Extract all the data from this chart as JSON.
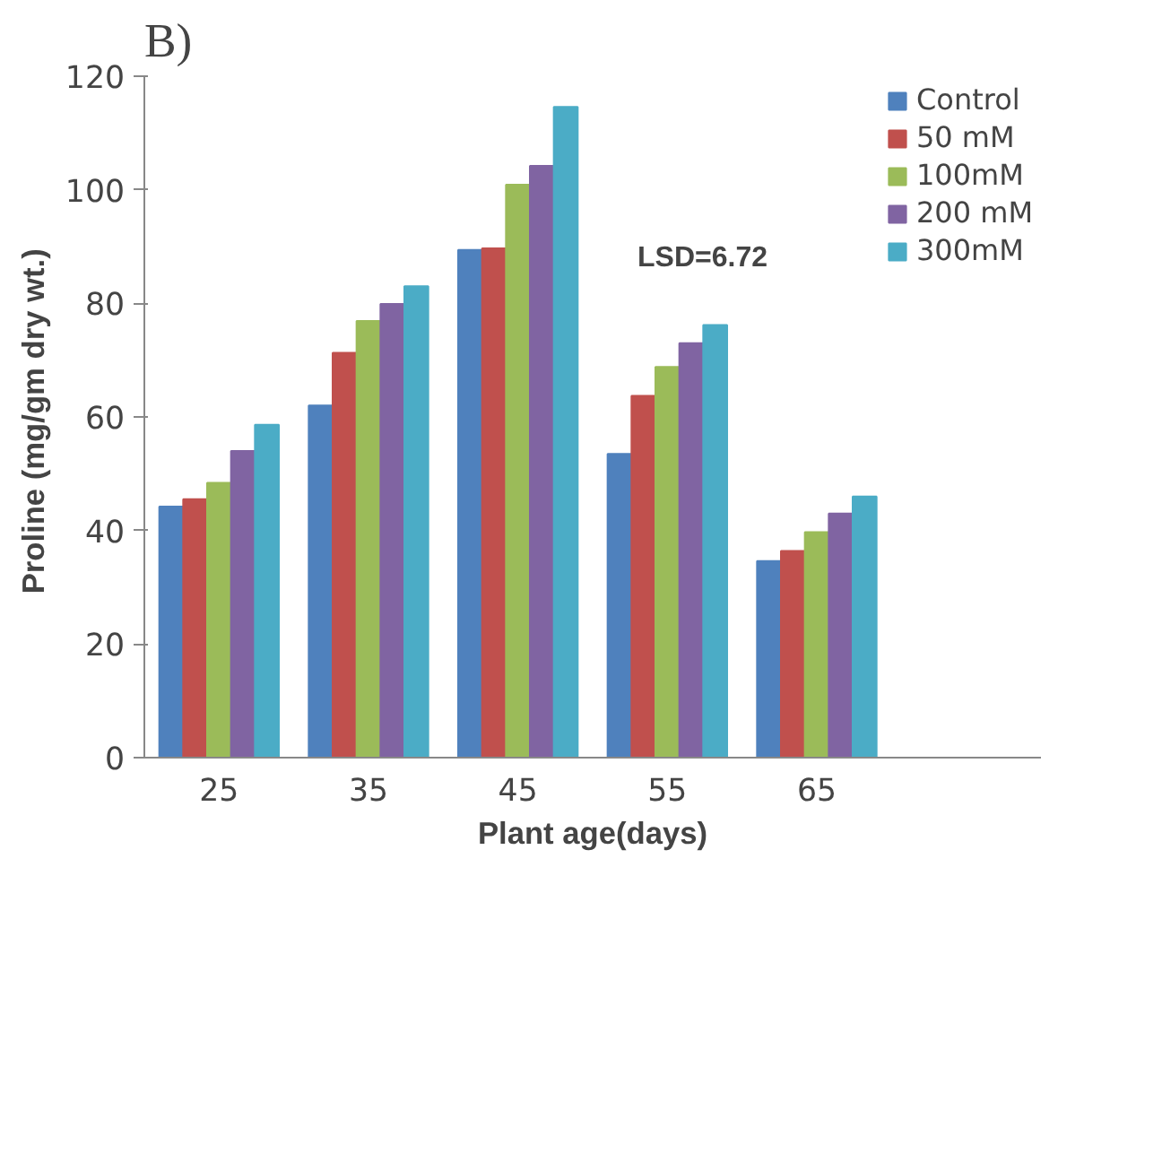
{
  "chart_data": {
    "type": "bar",
    "title": "B)",
    "xlabel": "Plant age(days)",
    "ylabel": "Proline  (mg/gm dry wt.)",
    "categories": [
      "25",
      "35",
      "45",
      "55",
      "65",
      null
    ],
    "series": [
      {
        "name": "Control",
        "color": "#4f81bd",
        "values": [
          44.2,
          62,
          89.4,
          53.5,
          34.6,
          null
        ]
      },
      {
        "name": "50 mM",
        "color": "#c0504d",
        "values": [
          45.5,
          71.3,
          89.7,
          63.7,
          36.4,
          null
        ]
      },
      {
        "name": "100mM",
        "color": "#9bbb59",
        "values": [
          48.4,
          76.9,
          100.9,
          68.8,
          39.7,
          null
        ]
      },
      {
        "name": "200 mM",
        "color": "#8064a2",
        "values": [
          54,
          79.9,
          104.2,
          73,
          43,
          null
        ]
      },
      {
        "name": "300mM",
        "color": "#4bacc6",
        "values": [
          58.6,
          83,
          114.6,
          76.2,
          46,
          null
        ]
      }
    ],
    "ylim": [
      0,
      120
    ],
    "yticks": [
      0,
      20,
      40,
      60,
      80,
      100,
      120
    ],
    "grid": false,
    "legend": "top right",
    "annotations": [
      "LSD=6.72"
    ]
  }
}
